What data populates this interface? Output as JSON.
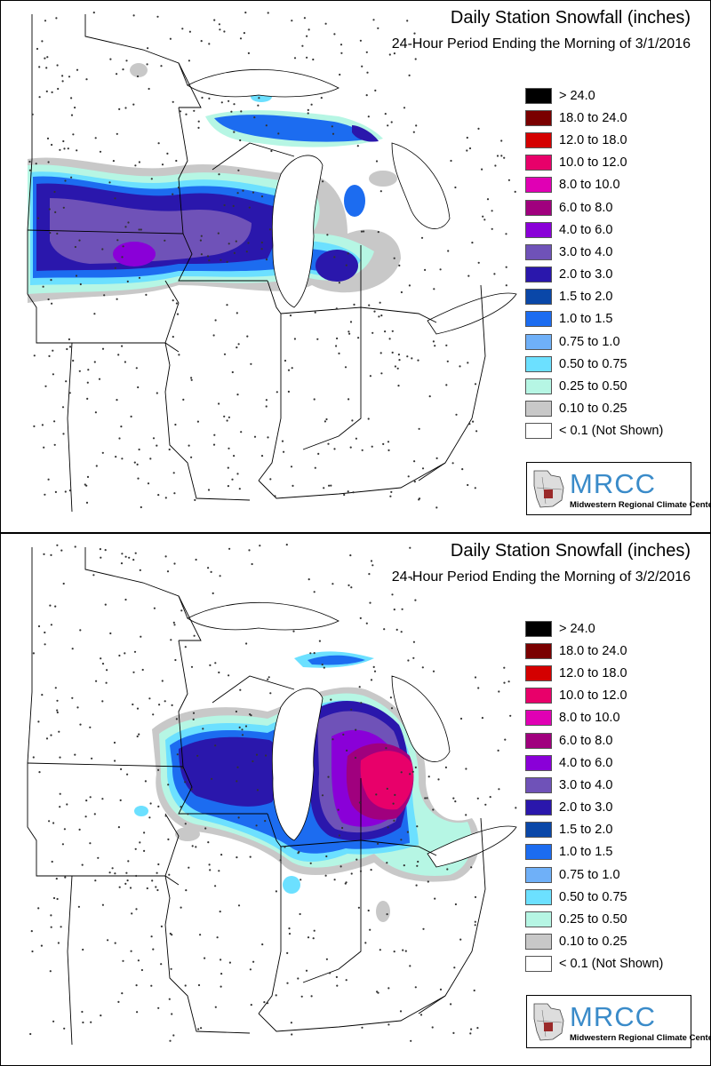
{
  "panels": [
    {
      "title": "Daily Station Snowfall (inches)",
      "subtitle": "24-Hour Period Ending the Morning of 3/1/2016",
      "legend_items": [
        {
          "label": "> 24.0",
          "color": "#000000"
        },
        {
          "label": "18.0 to 24.0",
          "color": "#7a0000"
        },
        {
          "label": "12.0 to 18.0",
          "color": "#d40000"
        },
        {
          "label": "10.0 to 12.0",
          "color": "#e8006a"
        },
        {
          "label": "8.0 to 10.0",
          "color": "#e000b4"
        },
        {
          "label": "6.0 to 8.0",
          "color": "#a0007e"
        },
        {
          "label": "4.0 to 6.0",
          "color": "#8a00d8"
        },
        {
          "label": "3.0 to 4.0",
          "color": "#6f52b8"
        },
        {
          "label": "2.0 to 3.0",
          "color": "#2a17ac"
        },
        {
          "label": "1.5 to 2.0",
          "color": "#0a47a8"
        },
        {
          "label": "1.0 to 1.5",
          "color": "#1c6cf0"
        },
        {
          "label": "0.75 to 1.0",
          "color": "#6fb0f8"
        },
        {
          "label": "0.50 to 0.75",
          "color": "#6ce0ff"
        },
        {
          "label": "0.25 to 0.50",
          "color": "#b6f6e4"
        },
        {
          "label": "0.10 to 0.25",
          "color": "#c8c8c8"
        },
        {
          "label": "< 0.1 (Not Shown)",
          "color": "#ffffff"
        }
      ],
      "logo": {
        "name": "MRCC",
        "full_name": "Midwestern Regional Climate Center"
      }
    },
    {
      "title": "Daily Station Snowfall (inches)",
      "subtitle": "24-Hour Period Ending the Morning of 3/2/2016",
      "legend_items": [
        {
          "label": "> 24.0",
          "color": "#000000"
        },
        {
          "label": "18.0 to 24.0",
          "color": "#7a0000"
        },
        {
          "label": "12.0 to 18.0",
          "color": "#d40000"
        },
        {
          "label": "10.0 to 12.0",
          "color": "#e8006a"
        },
        {
          "label": "8.0 to 10.0",
          "color": "#e000b4"
        },
        {
          "label": "6.0 to 8.0",
          "color": "#a0007e"
        },
        {
          "label": "4.0 to 6.0",
          "color": "#8a00d8"
        },
        {
          "label": "3.0 to 4.0",
          "color": "#6f52b8"
        },
        {
          "label": "2.0 to 3.0",
          "color": "#2a17ac"
        },
        {
          "label": "1.5 to 2.0",
          "color": "#0a47a8"
        },
        {
          "label": "1.0 to 1.5",
          "color": "#1c6cf0"
        },
        {
          "label": "0.75 to 1.0",
          "color": "#6fb0f8"
        },
        {
          "label": "0.50 to 0.75",
          "color": "#6ce0ff"
        },
        {
          "label": "0.25 to 0.50",
          "color": "#b6f6e4"
        },
        {
          "label": "0.10 to 0.25",
          "color": "#c8c8c8"
        },
        {
          "label": "< 0.1 (Not Shown)",
          "color": "#ffffff"
        }
      ],
      "logo": {
        "name": "MRCC",
        "full_name": "Midwestern Regional Climate Center"
      }
    }
  ]
}
